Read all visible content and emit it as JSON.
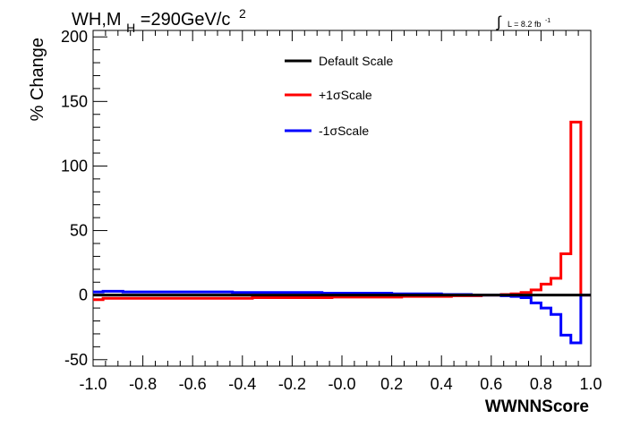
{
  "chart_data": {
    "type": "line",
    "style": "step-histogram",
    "title": {
      "prefix": "WH,M",
      "subscript": "H",
      "value": "=290GeV/c",
      "superscript": "2"
    },
    "lumi": {
      "label": "L = 8.2 fb",
      "superscript": "-1"
    },
    "xlabel": "WWNNScore",
    "ylabel": "% Change",
    "xlim": [
      -1.0,
      1.0
    ],
    "ylim": [
      -55,
      205
    ],
    "xticks": [
      -1.0,
      -0.8,
      -0.6,
      -0.4,
      -0.2,
      0.0,
      0.2,
      0.4,
      0.6,
      0.8,
      1.0
    ],
    "xtick_labels": [
      "-1.0",
      "-0.8",
      "-0.6",
      "-0.4",
      "-0.2",
      "-0.0",
      "0.2",
      "0.4",
      "0.6",
      "0.8",
      "1.0"
    ],
    "yticks": [
      -50,
      0,
      50,
      100,
      150,
      200
    ],
    "ytick_labels": [
      "-50",
      "0",
      "50",
      "100",
      "150",
      "200"
    ],
    "grid": false,
    "legend_position": "top-center",
    "bin_edges": [
      -1.0,
      -0.96,
      -0.92,
      -0.88,
      -0.84,
      -0.8,
      -0.76,
      -0.72,
      -0.68,
      -0.64,
      -0.6,
      -0.56,
      -0.52,
      -0.48,
      -0.44,
      -0.4,
      -0.36,
      -0.32,
      -0.28,
      -0.24,
      -0.2,
      -0.16,
      -0.12,
      -0.08,
      -0.04,
      0.0,
      0.04,
      0.08,
      0.12,
      0.16,
      0.2,
      0.24,
      0.28,
      0.32,
      0.36,
      0.4,
      0.44,
      0.48,
      0.52,
      0.56,
      0.6,
      0.64,
      0.68,
      0.72,
      0.76,
      0.8,
      0.84,
      0.88,
      0.92,
      0.96,
      1.0
    ],
    "series": [
      {
        "name": "Default Scale",
        "color": "#000000",
        "values": [
          0,
          0,
          0,
          0,
          0,
          0,
          0,
          0,
          0,
          0,
          0,
          0,
          0,
          0,
          0,
          0,
          0,
          0,
          0,
          0,
          0,
          0,
          0,
          0,
          0,
          0,
          0,
          0,
          0,
          0,
          0,
          0,
          0,
          0,
          0,
          0,
          0,
          0,
          0,
          0,
          0,
          0,
          0,
          0,
          0,
          0,
          0,
          0,
          0,
          0
        ]
      },
      {
        "name": "+1σScale",
        "color": "#ff0000",
        "values": [
          -3.5,
          -2.5,
          -2.5,
          -2.5,
          -2.5,
          -2.5,
          -2.5,
          -2.5,
          -2.5,
          -2.5,
          -2.5,
          -2.5,
          -2.5,
          -2.5,
          -2.5,
          -2.5,
          -2.0,
          -2.0,
          -2.0,
          -2.0,
          -2.0,
          -2.0,
          -2.0,
          -2.0,
          -1.5,
          -1.5,
          -1.5,
          -1.5,
          -1.5,
          -1.5,
          -1.5,
          -1.0,
          -1.0,
          -1.0,
          -1.0,
          -1.0,
          -0.5,
          -0.5,
          -0.5,
          0.0,
          0.0,
          0.5,
          1.0,
          2.0,
          4.0,
          8.5,
          13.0,
          32.0,
          134.0,
          0.0
        ]
      },
      {
        "name": "-1σScale",
        "color": "#0000ff",
        "values": [
          2.5,
          3.0,
          3.0,
          2.5,
          2.5,
          2.5,
          2.5,
          2.5,
          2.5,
          2.5,
          2.5,
          2.5,
          2.5,
          2.5,
          2.0,
          2.0,
          2.0,
          2.0,
          2.0,
          2.0,
          2.0,
          2.0,
          2.0,
          1.5,
          1.5,
          1.5,
          1.5,
          1.5,
          1.5,
          1.5,
          1.0,
          1.0,
          1.0,
          1.0,
          1.0,
          0.5,
          0.5,
          0.5,
          0.0,
          0.0,
          0.0,
          -0.5,
          -1.0,
          -2.0,
          -6.0,
          -10.0,
          -15.0,
          -31.0,
          -37.0,
          0.0
        ]
      }
    ]
  }
}
